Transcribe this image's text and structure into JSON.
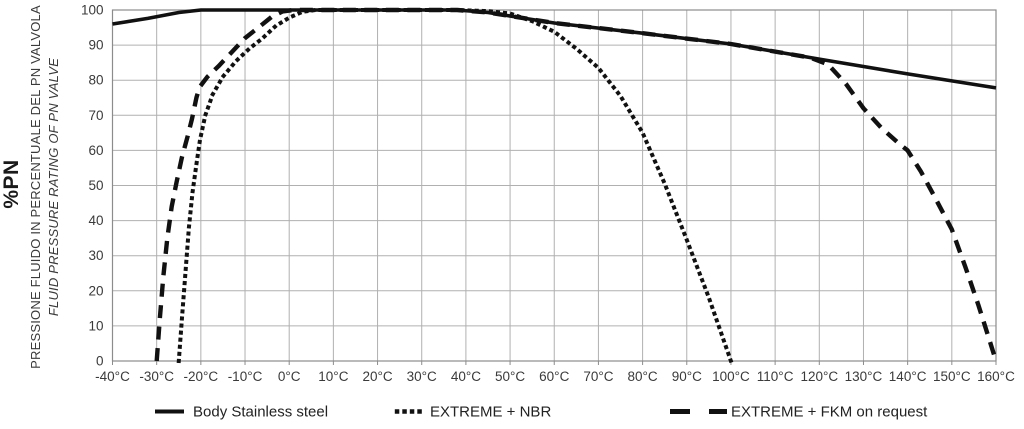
{
  "chart_data": {
    "type": "line",
    "title": "",
    "grid": true,
    "legend_position": "bottom",
    "line_color": "#111111",
    "grid_color": "#b0b0b0",
    "x_axis": {
      "unit": "°C",
      "range": [
        -40,
        160
      ],
      "tick_values": [
        -40,
        -30,
        -20,
        -10,
        0,
        10,
        20,
        30,
        40,
        50,
        60,
        70,
        80,
        90,
        100,
        110,
        120,
        130,
        140,
        150,
        160
      ],
      "tick_labels": [
        "-40°C",
        "-30°C",
        "-20°C",
        "-10°C",
        "0°C",
        "10°C",
        "20°C",
        "30°C",
        "40°C",
        "50°C",
        "60°C",
        "70°C",
        "80°C",
        "90°C",
        "100°C",
        "110°C",
        "120°C",
        "130°C",
        "140°C",
        "150°C",
        "160°C"
      ]
    },
    "y_axis": {
      "title_main": "%PN",
      "title_italian": "PRESSIONE FLUIDO IN PERCENTUALE DEL PN VALVOLA",
      "title_english": "FLUID PRESSURE RATING OF PN VALVE",
      "range": [
        0,
        100
      ],
      "tick_values": [
        0,
        10,
        20,
        30,
        40,
        50,
        60,
        70,
        80,
        90,
        100
      ]
    },
    "series": [
      {
        "name": "Body Stainless steel",
        "style": "solid",
        "color": "#111111",
        "points": [
          [
            -40,
            96
          ],
          [
            -32,
            97.6
          ],
          [
            -25,
            99.3
          ],
          [
            -20,
            100
          ],
          [
            0,
            100
          ],
          [
            38,
            100
          ],
          [
            45,
            99.3
          ],
          [
            60,
            96.3
          ],
          [
            80,
            93.4
          ],
          [
            100,
            90.3
          ],
          [
            120,
            86
          ],
          [
            140,
            81.8
          ],
          [
            160,
            77.8
          ]
        ]
      },
      {
        "name": "EXTREME + NBR",
        "style": "dotted",
        "color": "#111111",
        "points": [
          [
            -25,
            0
          ],
          [
            -24.3,
            12
          ],
          [
            -23.5,
            25
          ],
          [
            -22.7,
            38
          ],
          [
            -21.9,
            48
          ],
          [
            -21,
            56
          ],
          [
            -20.2,
            63
          ],
          [
            -19,
            70
          ],
          [
            -17.3,
            76
          ],
          [
            -15,
            81
          ],
          [
            -12,
            85.5
          ],
          [
            -9,
            89
          ],
          [
            -6,
            92
          ],
          [
            -3,
            95.5
          ],
          [
            0,
            97.8
          ],
          [
            3,
            99.5
          ],
          [
            6,
            100
          ],
          [
            38,
            100
          ],
          [
            45,
            99.7
          ],
          [
            50,
            99
          ],
          [
            55,
            96.8
          ],
          [
            60,
            93.8
          ],
          [
            65,
            89
          ],
          [
            70,
            83.5
          ],
          [
            75,
            75.5
          ],
          [
            80,
            65
          ],
          [
            85,
            50.5
          ],
          [
            90,
            34.5
          ],
          [
            95,
            18
          ],
          [
            100,
            0
          ]
        ]
      },
      {
        "name": "EXTREME + FKM on request",
        "style": "dashed",
        "color": "#111111",
        "points": [
          [
            -30,
            0
          ],
          [
            -29.3,
            12
          ],
          [
            -28.5,
            24
          ],
          [
            -27.6,
            35
          ],
          [
            -26.6,
            44
          ],
          [
            -25.5,
            51
          ],
          [
            -24.3,
            58
          ],
          [
            -23,
            64
          ],
          [
            -22,
            69
          ],
          [
            -21,
            75
          ],
          [
            -20.3,
            78
          ],
          [
            -18.5,
            81
          ],
          [
            -16,
            84
          ],
          [
            -13,
            88
          ],
          [
            -10,
            92
          ],
          [
            -7,
            95
          ],
          [
            -4,
            98
          ],
          [
            -1.5,
            99.6
          ],
          [
            1,
            100
          ],
          [
            38,
            100
          ],
          [
            45,
            99.3
          ],
          [
            60,
            96.3
          ],
          [
            80,
            93.4
          ],
          [
            100,
            90.3
          ],
          [
            118,
            86.4
          ],
          [
            122,
            84.5
          ],
          [
            126,
            79
          ],
          [
            130,
            72
          ],
          [
            134,
            66.5
          ],
          [
            138,
            62
          ],
          [
            140,
            60
          ],
          [
            143,
            54
          ],
          [
            146,
            47
          ],
          [
            150,
            37.5
          ],
          [
            153,
            27
          ],
          [
            156,
            16
          ],
          [
            158,
            8
          ],
          [
            160,
            0
          ]
        ]
      }
    ]
  },
  "legend": {
    "items": [
      {
        "label": "Body Stainless steel"
      },
      {
        "label": "EXTREME + NBR"
      },
      {
        "label": "EXTREME + FKM on request"
      }
    ]
  }
}
